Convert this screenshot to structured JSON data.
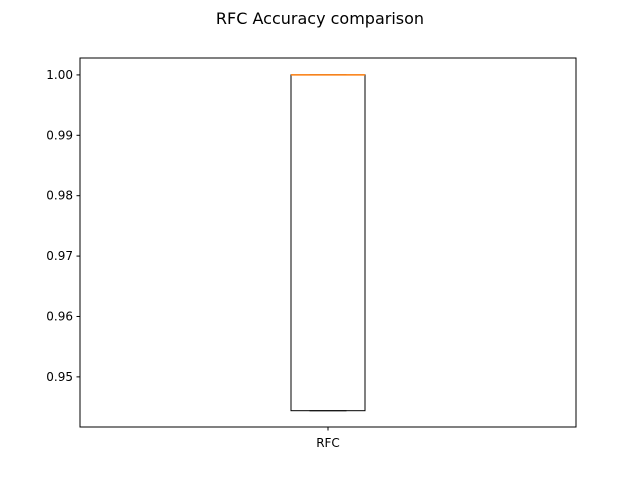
{
  "chart_data": {
    "type": "box",
    "title": "RFC Accuracy comparison",
    "xlabel": "",
    "ylabel": "",
    "categories": [
      "RFC"
    ],
    "series": [
      {
        "name": "RFC",
        "box": {
          "whisker_low": 0.9444,
          "q1": 0.9444,
          "median": 1.0,
          "q3": 1.0,
          "whisker_high": 1.0
        }
      }
    ],
    "ylim": [
      0.9417,
      1.0028
    ],
    "yticks": [
      0.95,
      0.96,
      0.97,
      0.98,
      0.99,
      1.0
    ],
    "ytick_labels": [
      "0.95",
      "0.96",
      "0.97",
      "0.98",
      "0.99",
      "1.00"
    ],
    "grid": false,
    "colors": {
      "box": "#000000",
      "median": "#ff7f0e",
      "axes": "#000000"
    }
  }
}
